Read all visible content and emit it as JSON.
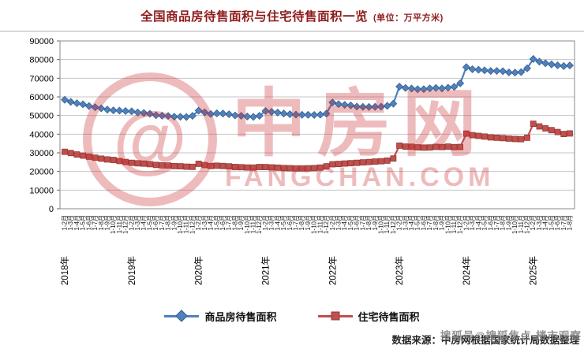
{
  "title": {
    "text": "全国商品房待售面积与住宅待售面积一览",
    "unit": "(单位：万平方米)"
  },
  "watermark": {
    "logo_glyph": "@",
    "brand": "中房网",
    "domain": "FANGCHAN.COM"
  },
  "overlay": {
    "sohu_text": "搜狐号@搜狐焦点·楼市观察"
  },
  "source": {
    "text": "数据来源：中房网根据国家统计局数据整理"
  },
  "chart_data": {
    "type": "line",
    "title": "全国商品房待售面积与住宅待售面积一览",
    "unit": "万平方米",
    "xlabel": "",
    "ylabel": "",
    "ylim": [
      0,
      90000
    ],
    "ytick_step": 10000,
    "grid": "horizontal",
    "legend_position": "bottom",
    "month_labels": [
      "1-2月",
      "1-3月",
      "1-4月",
      "1-5月",
      "1-6月",
      "1-7月",
      "1-8月",
      "1-9月",
      "1-10月",
      "1-11月",
      "1-12月"
    ],
    "series_meta": [
      {
        "id": "commercial",
        "name": "商品房待售面积",
        "color": "#4F81BD",
        "edge": "#36608E",
        "marker": "diamond"
      },
      {
        "id": "residential",
        "name": "住宅待售面积",
        "color": "#C0504D",
        "edge": "#943734",
        "marker": "square"
      }
    ],
    "years": [
      {
        "year": "2018年",
        "commercial": [
          58468,
          57329,
          56579,
          56010,
          55083,
          54428,
          53873,
          53191,
          52789,
          52627,
          52414
        ],
        "residential": [
          30555,
          29883,
          29111,
          28510,
          27926,
          27397,
          26869,
          26450,
          26176,
          25609,
          25091
        ]
      },
      {
        "year": "2019年",
        "commercial": [
          52251,
          51646,
          51380,
          50928,
          50162,
          49876,
          49784,
          49346,
          49323,
          49221,
          49821
        ],
        "residential": [
          24644,
          24382,
          24210,
          23936,
          23514,
          23275,
          23205,
          22883,
          22783,
          22571,
          22473
        ]
      },
      {
        "year": "2020年",
        "commercial": [
          52638,
          51726,
          50825,
          51184,
          51081,
          50682,
          50052,
          49844,
          49492,
          49287,
          49850
        ],
        "residential": [
          24115,
          23430,
          22922,
          23088,
          22936,
          22726,
          22414,
          22282,
          22118,
          22079,
          22379
        ]
      },
      {
        "year": "2021年",
        "commercial": [
          52425,
          51970,
          51604,
          51087,
          50738,
          50492,
          50382,
          50385,
          50316,
          50463,
          51023
        ],
        "residential": [
          22349,
          22182,
          22034,
          21843,
          21743,
          21611,
          21621,
          21706,
          21809,
          22086,
          22761
        ]
      },
      {
        "year": "2022年",
        "commercial": [
          57026,
          56113,
          55735,
          55433,
          54784,
          54655,
          54605,
          54676,
          54734,
          55203,
          56366
        ],
        "residential": [
          23855,
          24043,
          24249,
          24436,
          24646,
          24869,
          25071,
          25309,
          25481,
          25807,
          26947
        ]
      },
      {
        "year": "2023年",
        "commercial": [
          65528,
          64770,
          64487,
          64120,
          64159,
          64564,
          64795,
          64537,
          64950,
          65385,
          67295
        ],
        "residential": [
          33852,
          33346,
          33270,
          32926,
          32809,
          32871,
          33193,
          33094,
          33337,
          33071,
          33139
        ]
      },
      {
        "year": "2024年",
        "commercial": [
          75969,
          74833,
          74553,
          74256,
          73894,
          73926,
          73784,
          73113,
          73012,
          73286,
          75327
        ],
        "residential": [
          40298,
          39458,
          39088,
          38714,
          38273,
          38088,
          37881,
          37636,
          37412,
          37314,
          38088
        ]
      },
      {
        "year": "2025年",
        "commercial": [
          80337,
          78898,
          78064,
          77437,
          76956,
          76536,
          76873
        ],
        "residential": [
          45597,
          44158,
          43114,
          42157,
          41156,
          40098,
          40388
        ]
      }
    ]
  }
}
